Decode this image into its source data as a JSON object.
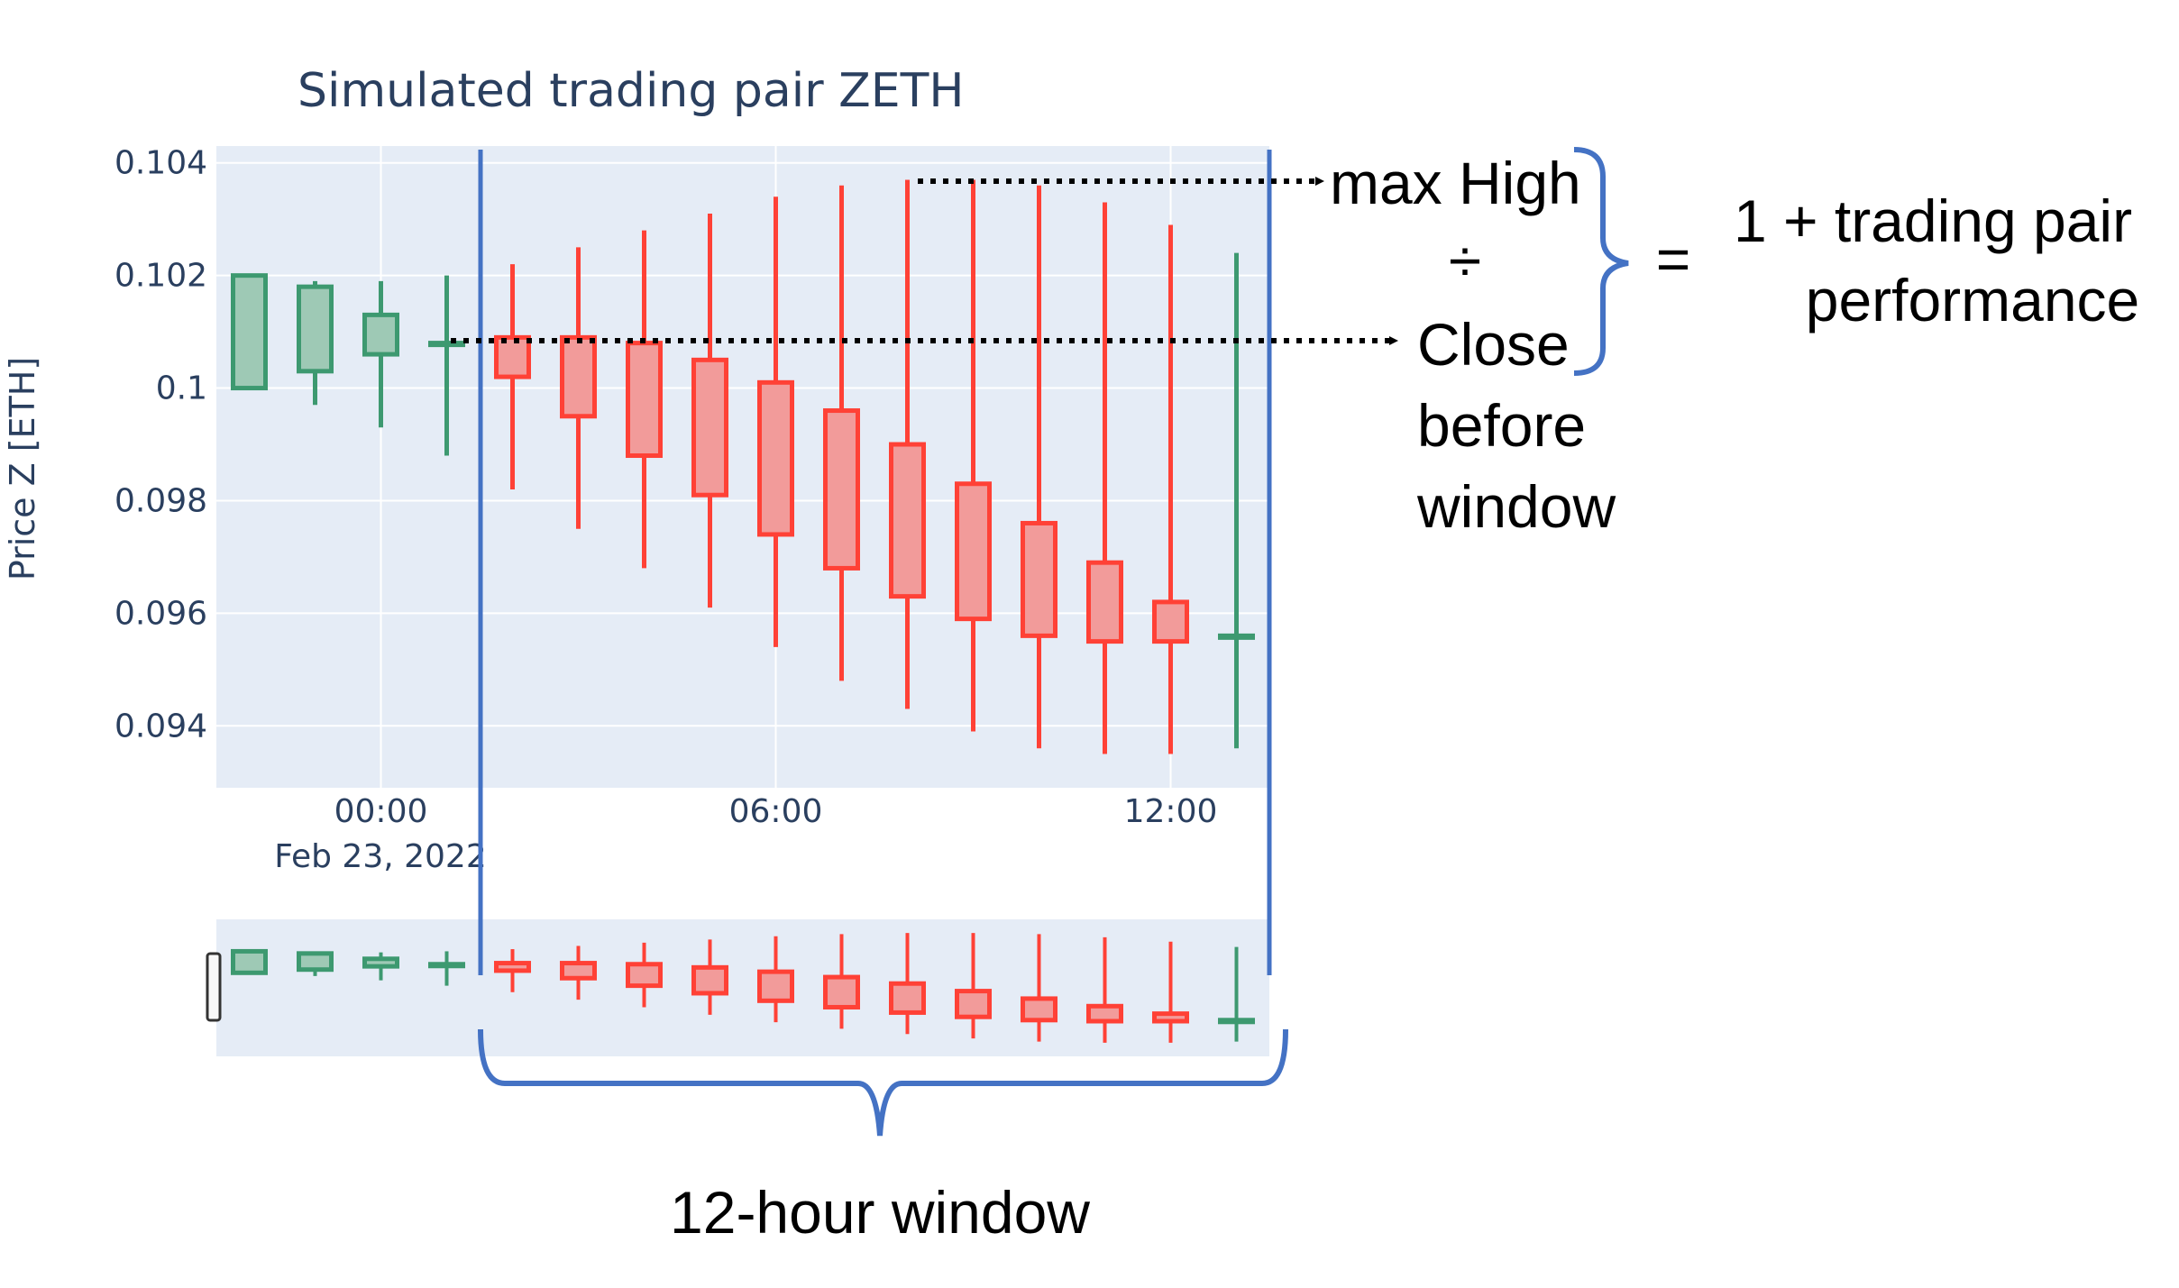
{
  "chart_data": {
    "type": "candlestick",
    "title": "Simulated trading pair ZETH",
    "ylabel": "Price Z [ETH]",
    "xlabel": "",
    "ylim": [
      0.0929,
      0.1043
    ],
    "yticks": [
      {
        "value": 0.104,
        "label": "0.104"
      },
      {
        "value": 0.102,
        "label": "0.102"
      },
      {
        "value": 0.1,
        "label": "0.1"
      },
      {
        "value": 0.098,
        "label": "0.098"
      },
      {
        "value": 0.096,
        "label": "0.096"
      },
      {
        "value": 0.094,
        "label": "0.094"
      }
    ],
    "xrange_hours": [
      -2.5,
      13.5
    ],
    "xticks": [
      {
        "hour": 0,
        "label": "00:00"
      },
      {
        "hour": 6,
        "label": "06:00"
      },
      {
        "hour": 12,
        "label": "12:00"
      }
    ],
    "date_label": "Feb 23, 2022",
    "colors": {
      "increasing": "#3d9970",
      "increasing_fill": "#9ec9b5",
      "decreasing": "#ff4136",
      "decreasing_fill": "#f29b9a",
      "plot_bg": "#e5ecf6",
      "annotation_blue": "#4472c4"
    },
    "candles": [
      {
        "hour": -2,
        "open": 0.1,
        "high": 0.102,
        "low": 0.1,
        "close": 0.102
      },
      {
        "hour": -1,
        "open": 0.1003,
        "high": 0.1019,
        "low": 0.0997,
        "close": 0.1018
      },
      {
        "hour": 0,
        "open": 0.1006,
        "high": 0.1019,
        "low": 0.0993,
        "close": 0.1013
      },
      {
        "hour": 1,
        "open": 0.1008,
        "high": 0.102,
        "low": 0.0988,
        "close": 0.1008
      },
      {
        "hour": 2,
        "open": 0.1009,
        "high": 0.1022,
        "low": 0.0982,
        "close": 0.1002
      },
      {
        "hour": 3,
        "open": 0.1009,
        "high": 0.1025,
        "low": 0.0975,
        "close": 0.0995
      },
      {
        "hour": 4,
        "open": 0.1008,
        "high": 0.1028,
        "low": 0.0968,
        "close": 0.0988
      },
      {
        "hour": 5,
        "open": 0.1005,
        "high": 0.1031,
        "low": 0.0961,
        "close": 0.0981
      },
      {
        "hour": 6,
        "open": 0.1001,
        "high": 0.1034,
        "low": 0.0954,
        "close": 0.0974
      },
      {
        "hour": 7,
        "open": 0.0996,
        "high": 0.1036,
        "low": 0.0948,
        "close": 0.0968
      },
      {
        "hour": 8,
        "open": 0.099,
        "high": 0.1037,
        "low": 0.0943,
        "close": 0.0963
      },
      {
        "hour": 9,
        "open": 0.0983,
        "high": 0.1037,
        "low": 0.0939,
        "close": 0.0959
      },
      {
        "hour": 10,
        "open": 0.0976,
        "high": 0.1036,
        "low": 0.0936,
        "close": 0.0956
      },
      {
        "hour": 11,
        "open": 0.0969,
        "high": 0.1033,
        "low": 0.0935,
        "close": 0.0955
      },
      {
        "hour": 12,
        "open": 0.0962,
        "high": 0.1029,
        "low": 0.0935,
        "close": 0.0955
      },
      {
        "hour": 13,
        "open": 0.0956,
        "high": 0.1024,
        "low": 0.0936,
        "close": 0.0956
      }
    ],
    "annotations": {
      "max_high": "max High",
      "divide": "÷",
      "close_line1": "Close",
      "close_line2": "before",
      "close_line3": "window",
      "equals": "=",
      "result_line1": "1 + trading pair",
      "result_line2": "performance",
      "window_label": "12-hour window"
    }
  }
}
